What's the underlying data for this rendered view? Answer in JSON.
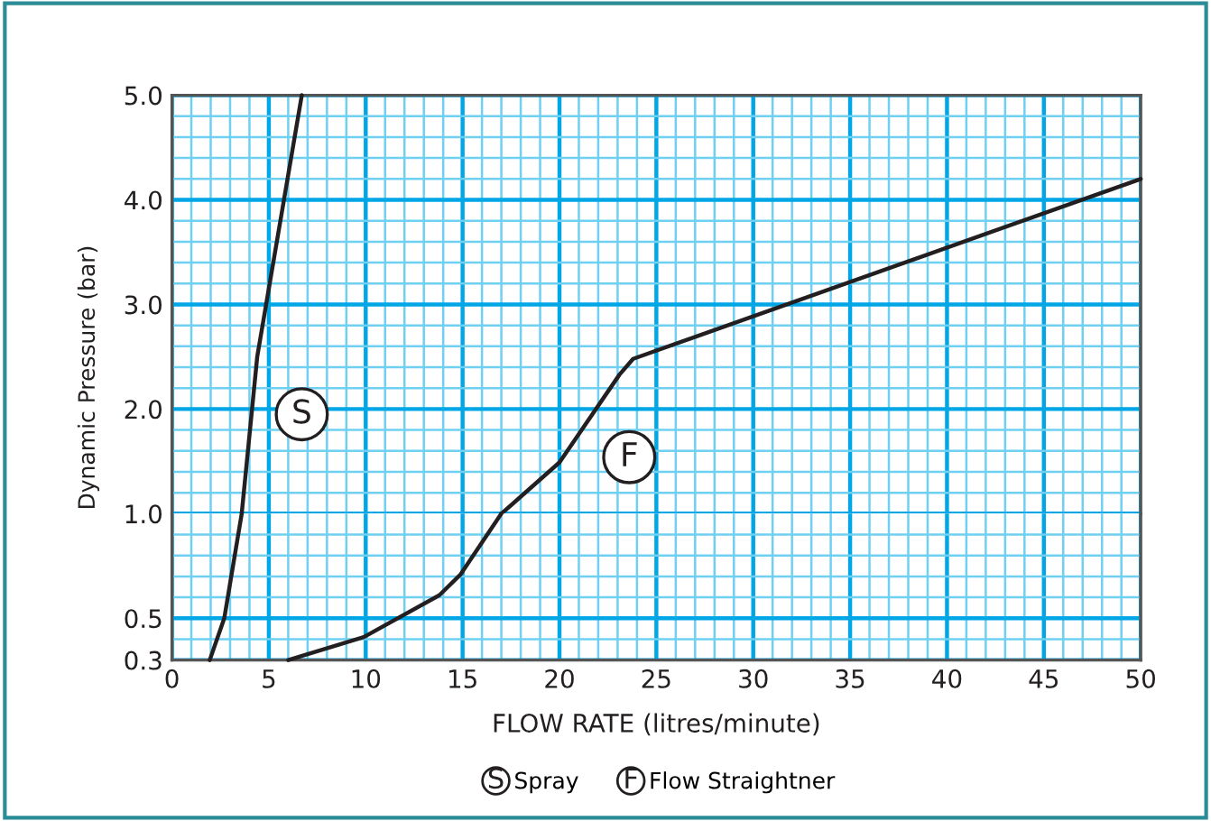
{
  "chart_data": [
    {
      "type": "line",
      "ylabel": "Dynamic Pressure (bar)",
      "series": [
        {
          "name": "Spray",
          "color": "#231f20",
          "x": [
            3.6,
            4.4,
            6.7
          ],
          "values": [
            1.0,
            2.5,
            5.0
          ]
        },
        {
          "name": "Flow Straightner",
          "color": "#231f20",
          "x": [
            17.0,
            17.5,
            20.0,
            23.1,
            23.8,
            50
          ],
          "values": [
            1.0,
            1.08,
            1.49,
            2.33,
            2.48,
            4.2
          ]
        }
      ],
      "annotations": [
        {
          "text": "S",
          "x": 6.7,
          "y": 1.95
        },
        {
          "text": "F",
          "x": 23.6,
          "y": 1.54
        }
      ],
      "xlim": [
        0,
        50
      ],
      "xticks": [
        0,
        {
          "value": 1,
          "label": null
        },
        {
          "value": 2,
          "label": null
        },
        {
          "value": 3,
          "label": null
        },
        {
          "value": 4,
          "label": null
        },
        5,
        {
          "value": 6,
          "label": null
        },
        {
          "value": 7,
          "label": null
        },
        {
          "value": 8,
          "label": null
        },
        {
          "value": 9,
          "label": null
        },
        10,
        {
          "value": 11,
          "label": null
        },
        {
          "value": 12,
          "label": null
        },
        {
          "value": 13,
          "label": null
        },
        {
          "value": 14,
          "label": null
        },
        15,
        {
          "value": 16,
          "label": null
        },
        {
          "value": 17,
          "label": null
        },
        {
          "value": 18,
          "label": null
        },
        {
          "value": 19,
          "label": null
        },
        20,
        {
          "value": 21,
          "label": null
        },
        {
          "value": 22,
          "label": null
        },
        {
          "value": 23,
          "label": null
        },
        {
          "value": 24,
          "label": null
        },
        25,
        {
          "value": 26,
          "label": null
        },
        {
          "value": 27,
          "label": null
        },
        {
          "value": 28,
          "label": null
        },
        {
          "value": 29,
          "label": null
        },
        30,
        {
          "value": 31,
          "label": null
        },
        {
          "value": 32,
          "label": null
        },
        {
          "value": 33,
          "label": null
        },
        {
          "value": 34,
          "label": null
        },
        35,
        {
          "value": 36,
          "label": null
        },
        {
          "value": 37,
          "label": null
        },
        {
          "value": 38,
          "label": null
        },
        {
          "value": 39,
          "label": null
        },
        40,
        {
          "value": 41,
          "label": null
        },
        {
          "value": 42,
          "label": null
        },
        {
          "value": 43,
          "label": null
        },
        {
          "value": 44,
          "label": null
        },
        45,
        {
          "value": 46,
          "label": null
        },
        {
          "value": 47,
          "label": null
        },
        {
          "value": 48,
          "label": null
        },
        {
          "value": 49,
          "label": null
        },
        50
      ],
      "tick_labels": "y",
      "ylim": [
        1.0,
        5.0
      ],
      "yticks": [
        {
          "value": 1,
          "label": "1.0"
        },
        {
          "value": 1.2,
          "label": null
        },
        {
          "value": 1.4,
          "label": null
        },
        {
          "value": 1.6,
          "label": null
        },
        {
          "value": 1.8,
          "label": null
        },
        {
          "value": 2,
          "label": "2.0"
        },
        {
          "value": 2.2,
          "label": null
        },
        {
          "value": 2.4,
          "label": null
        },
        {
          "value": 2.6,
          "label": null
        },
        {
          "value": 2.8,
          "label": null
        },
        {
          "value": 3,
          "label": "3.0"
        },
        {
          "value": 3.2,
          "label": null
        },
        {
          "value": 3.4,
          "label": null
        },
        {
          "value": 3.6,
          "label": null
        },
        {
          "value": 3.8,
          "label": null
        },
        {
          "value": 4,
          "label": "4.0"
        },
        {
          "value": 4.2,
          "label": null
        },
        {
          "value": 4.4,
          "label": null
        },
        {
          "value": 4.6,
          "label": null
        },
        {
          "value": 4.8,
          "label": null
        },
        {
          "value": 5,
          "label": "5.0"
        }
      ],
      "grid": true,
      "legend": "bottom",
      "marker": "none",
      "line_style": "solid"
    },
    {
      "type": "line",
      "xlabel": "FLOW RATE (litres/minute)",
      "series": [
        {
          "color": "#231f20",
          "x": [
            1.95,
            2.7,
            3.6
          ],
          "values": [
            0.3,
            0.5,
            1.0
          ]
        },
        {
          "color": "#231f20",
          "x": [
            6.0,
            9.9,
            13.8,
            14.9,
            17.0
          ],
          "values": [
            0.3,
            0.41,
            0.61,
            0.71,
            1.0
          ]
        }
      ],
      "xlim": [
        0,
        50
      ],
      "xticks": [
        0,
        {
          "value": 1,
          "label": null
        },
        {
          "value": 2,
          "label": null
        },
        {
          "value": 3,
          "label": null
        },
        {
          "value": 4,
          "label": null
        },
        5,
        {
          "value": 6,
          "label": null
        },
        {
          "value": 7,
          "label": null
        },
        {
          "value": 8,
          "label": null
        },
        {
          "value": 9,
          "label": null
        },
        10,
        {
          "value": 11,
          "label": null
        },
        {
          "value": 12,
          "label": null
        },
        {
          "value": 13,
          "label": null
        },
        {
          "value": 14,
          "label": null
        },
        15,
        {
          "value": 16,
          "label": null
        },
        {
          "value": 17,
          "label": null
        },
        {
          "value": 18,
          "label": null
        },
        {
          "value": 19,
          "label": null
        },
        20,
        {
          "value": 21,
          "label": null
        },
        {
          "value": 22,
          "label": null
        },
        {
          "value": 23,
          "label": null
        },
        {
          "value": 24,
          "label": null
        },
        25,
        {
          "value": 26,
          "label": null
        },
        {
          "value": 27,
          "label": null
        },
        {
          "value": 28,
          "label": null
        },
        {
          "value": 29,
          "label": null
        },
        30,
        {
          "value": 31,
          "label": null
        },
        {
          "value": 32,
          "label": null
        },
        {
          "value": 33,
          "label": null
        },
        {
          "value": 34,
          "label": null
        },
        35,
        {
          "value": 36,
          "label": null
        },
        {
          "value": 37,
          "label": null
        },
        {
          "value": 38,
          "label": null
        },
        {
          "value": 39,
          "label": null
        },
        40,
        {
          "value": 41,
          "label": null
        },
        {
          "value": 42,
          "label": null
        },
        {
          "value": 43,
          "label": null
        },
        {
          "value": 44,
          "label": null
        },
        45,
        {
          "value": 46,
          "label": null
        },
        {
          "value": 47,
          "label": null
        },
        {
          "value": 48,
          "label": null
        },
        {
          "value": 49,
          "label": null
        },
        50
      ],
      "ylim": [
        0.3,
        1.0
      ],
      "yticks": [
        {
          "value": 0.3,
          "label": "0.3"
        },
        {
          "value": 0.4,
          "label": null
        },
        {
          "value": 0.5,
          "label": "0.5"
        },
        {
          "value": 0.6,
          "label": null
        },
        {
          "value": 0.7,
          "label": null
        },
        {
          "value": 0.8,
          "label": null
        },
        {
          "value": 0.9,
          "label": null
        }
      ],
      "grid": true,
      "marker": "none",
      "line_style": "solid"
    }
  ]
}
